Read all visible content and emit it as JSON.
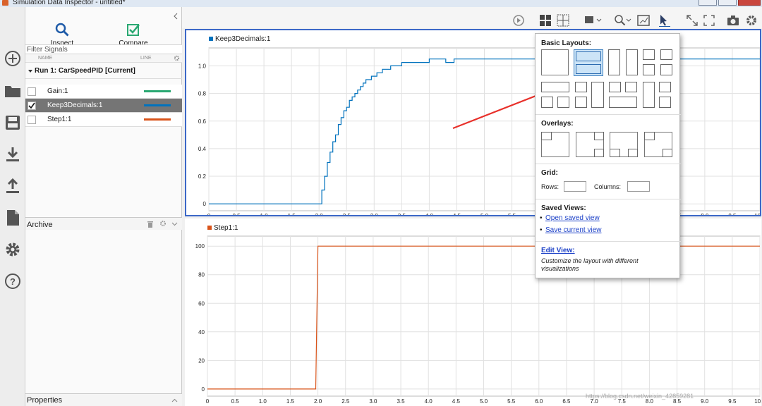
{
  "window": {
    "title": "Simulation Data Inspector - untitled*"
  },
  "leftbar": {
    "icons": [
      "new-icon",
      "folder-icon",
      "save-icon",
      "import-icon",
      "export-icon",
      "report-icon",
      "settings-icon",
      "help-icon"
    ]
  },
  "tabs": [
    {
      "label": "Inspect",
      "active": true
    },
    {
      "label": "Compare",
      "active": false
    }
  ],
  "filter": {
    "placeholder": "Filter Signals"
  },
  "columns": {
    "name": "NAME",
    "line": "LINE"
  },
  "run": {
    "label": "Run 1: CarSpeedPID [Current]"
  },
  "signals": [
    {
      "name": "Gain:1",
      "color": "#2aa872",
      "checked": false,
      "selected": false
    },
    {
      "name": "Keep3Decimals:1",
      "color": "#0072bd",
      "checked": true,
      "selected": true
    },
    {
      "name": "Step1:1",
      "color": "#d95319",
      "checked": false,
      "selected": false
    }
  ],
  "archive": {
    "label": "Archive"
  },
  "properties": {
    "label": "Properties"
  },
  "plots": [
    {
      "title": "Keep3Decimals:1",
      "color": "#0072bd",
      "chart_data": {
        "type": "line",
        "series": [
          {
            "name": "Keep3Decimals:1",
            "shape": "stepped-rise",
            "x_start": 2.0,
            "final_y": 1.05
          }
        ],
        "xticks": [
          "0",
          "0.5",
          "1.0",
          "1.5",
          "2.0",
          "2.5",
          "3.0",
          "3.5",
          "4.0",
          "4.5",
          "5.0",
          "5.5",
          "6.0",
          "6.5",
          "7.0",
          "7.5",
          "8.0",
          "8.5",
          "9.0",
          "9.5",
          "10.0"
        ],
        "yticks": [
          "0",
          "0.2",
          "0.4",
          "0.6",
          "0.8",
          "1.0"
        ],
        "xlim": [
          0,
          10
        ],
        "ylim": [
          -0.05,
          1.13
        ],
        "grid": true
      }
    },
    {
      "title": "Step1:1",
      "color": "#d95319",
      "chart_data": {
        "type": "line",
        "series": [
          {
            "name": "Step1:1",
            "x": [
              0,
              1.96,
              2.0,
              10.0
            ],
            "y": [
              0,
              0,
              100,
              100
            ]
          }
        ],
        "xticks": [
          "0",
          "0.5",
          "1.0",
          "1.5",
          "2.0",
          "2.5",
          "3.0",
          "3.5",
          "4.0",
          "4.5",
          "5.0",
          "5.5",
          "6.0",
          "6.5",
          "7.0",
          "7.5",
          "8.0",
          "8.5",
          "9.0",
          "9.5",
          "10.0"
        ],
        "yticks": [
          "0",
          "20",
          "40",
          "60",
          "80",
          "100"
        ],
        "xlim": [
          0,
          10
        ],
        "ylim": [
          -5,
          107
        ],
        "grid": true
      }
    }
  ],
  "popup": {
    "basic_layouts_label": "Basic Layouts:",
    "overlays_label": "Overlays:",
    "grid_label": "Grid:",
    "rows_label": "Rows:",
    "columns_label": "Columns:",
    "saved_views_label": "Saved Views:",
    "open_saved_view": "Open saved view",
    "save_current_view": "Save current view",
    "edit_view": "Edit View:",
    "edit_view_desc": "Customize the layout with different visualizations"
  },
  "watermark": "https://blog.csdn.net/weixin_42859281"
}
